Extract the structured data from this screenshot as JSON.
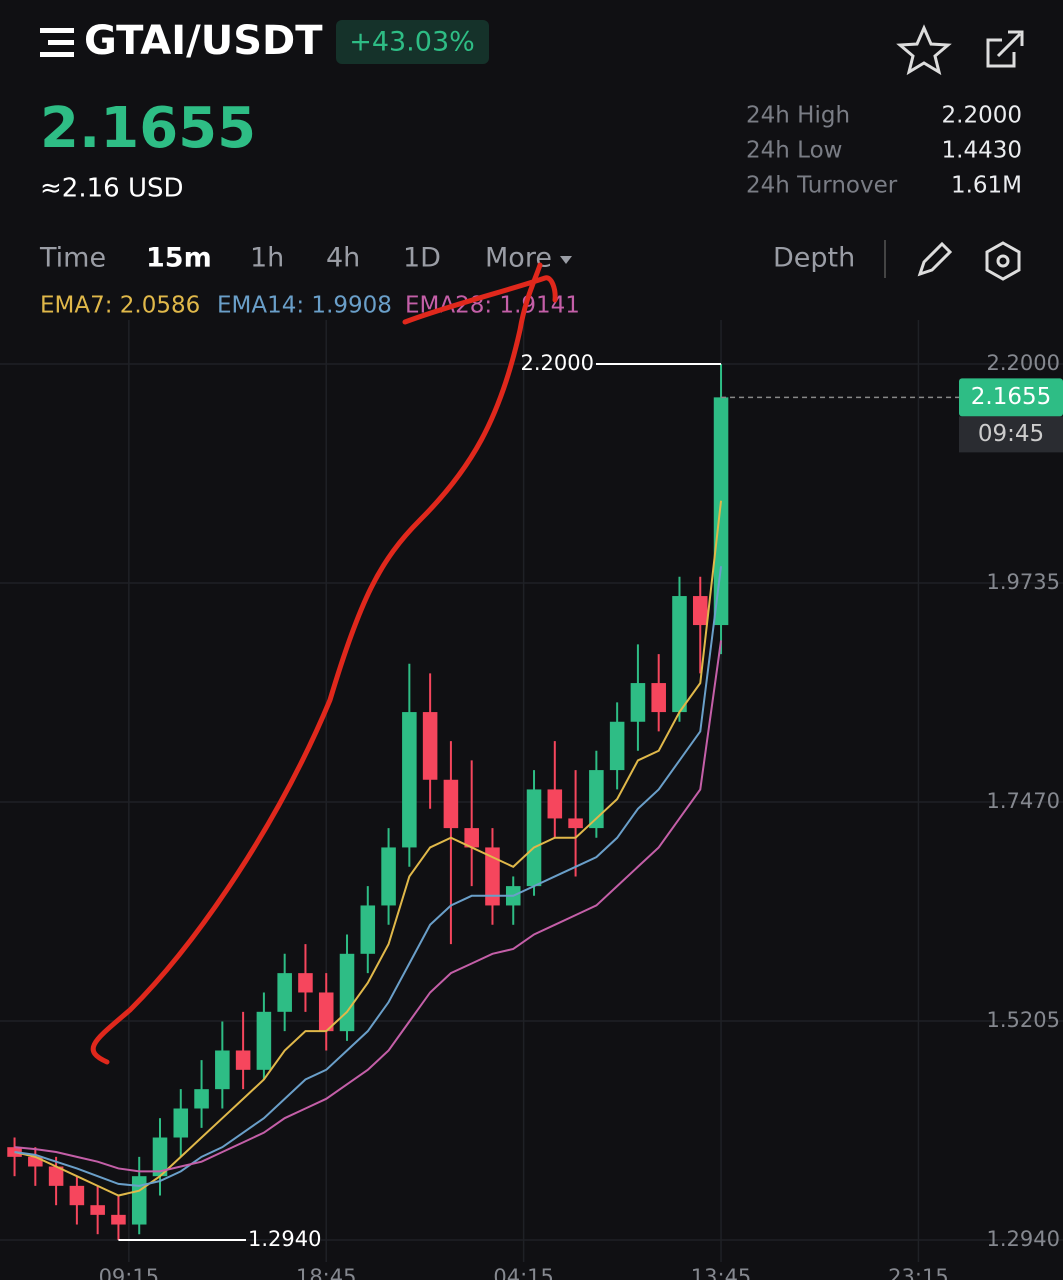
{
  "header": {
    "pair": "GTAI/USDT",
    "change": "+43.03%",
    "price": "2.1655",
    "usd_price": "≈2.16 USD",
    "stats": [
      {
        "label": "24h High",
        "value": "2.2000"
      },
      {
        "label": "24h Low",
        "value": "1.4430"
      },
      {
        "label": "24h Turnover",
        "value": "1.61M"
      }
    ]
  },
  "tabs": [
    "Time",
    "15m",
    "1h",
    "4h",
    "1D",
    "More",
    "Depth"
  ],
  "indicators": [
    "EMA7: 2.0586",
    "EMA14: 1.9908",
    "EMA28: 1.9141"
  ],
  "chart_data": {
    "type": "candlestick",
    "up_color": "#2ebd85",
    "down_color": "#f6465d",
    "grid": true,
    "x": [
      -5.5,
      -4.5,
      -3.5,
      -2.5,
      -1.5,
      -0.5,
      0.5,
      1.5,
      2.5,
      3.5,
      4.5,
      5.5,
      6.5,
      7.5,
      8.5,
      9.5,
      10.5,
      11.5,
      12.5,
      13.5,
      14.5,
      15.5,
      16.5,
      17.5,
      18.5,
      19.5,
      20.5,
      21.5,
      22.5,
      23.5,
      24.5,
      25.5,
      26.5,
      27.5,
      28.5
    ],
    "open": [
      1.39,
      1.38,
      1.37,
      1.35,
      1.33,
      1.32,
      1.31,
      1.36,
      1.4,
      1.43,
      1.45,
      1.49,
      1.47,
      1.53,
      1.57,
      1.55,
      1.51,
      1.59,
      1.64,
      1.7,
      1.84,
      1.77,
      1.72,
      1.7,
      1.64,
      1.66,
      1.76,
      1.73,
      1.72,
      1.78,
      1.83,
      1.87,
      1.84,
      1.96,
      1.93
    ],
    "high": [
      1.4,
      1.39,
      1.38,
      1.36,
      1.35,
      1.34,
      1.38,
      1.42,
      1.45,
      1.48,
      1.52,
      1.53,
      1.55,
      1.59,
      1.6,
      1.57,
      1.61,
      1.66,
      1.72,
      1.89,
      1.88,
      1.81,
      1.79,
      1.72,
      1.67,
      1.78,
      1.81,
      1.78,
      1.8,
      1.85,
      1.91,
      1.9,
      1.98,
      1.98,
      2.2
    ],
    "low": [
      1.36,
      1.35,
      1.33,
      1.31,
      1.3,
      1.294,
      1.3,
      1.34,
      1.38,
      1.41,
      1.43,
      1.45,
      1.46,
      1.51,
      1.53,
      1.49,
      1.5,
      1.57,
      1.62,
      1.68,
      1.74,
      1.6,
      1.66,
      1.62,
      1.62,
      1.65,
      1.71,
      1.67,
      1.71,
      1.76,
      1.8,
      1.82,
      1.83,
      1.88,
      1.9
    ],
    "close": [
      1.38,
      1.37,
      1.35,
      1.33,
      1.32,
      1.31,
      1.36,
      1.4,
      1.43,
      1.45,
      1.49,
      1.47,
      1.53,
      1.57,
      1.55,
      1.51,
      1.59,
      1.64,
      1.7,
      1.84,
      1.77,
      1.72,
      1.7,
      1.64,
      1.66,
      1.76,
      1.73,
      1.72,
      1.78,
      1.83,
      1.87,
      1.84,
      1.96,
      1.93,
      2.1655
    ],
    "series": [
      {
        "name": "EMA7",
        "color": "#e0b84a",
        "values": [
          1.385,
          1.38,
          1.37,
          1.36,
          1.35,
          1.34,
          1.345,
          1.36,
          1.38,
          1.4,
          1.42,
          1.44,
          1.46,
          1.49,
          1.51,
          1.51,
          1.53,
          1.56,
          1.6,
          1.67,
          1.7,
          1.71,
          1.7,
          1.69,
          1.68,
          1.7,
          1.71,
          1.71,
          1.73,
          1.75,
          1.79,
          1.8,
          1.84,
          1.87,
          2.0586
        ]
      },
      {
        "name": "EMA14",
        "color": "#6a9fc9",
        "values": [
          1.385,
          1.382,
          1.375,
          1.368,
          1.36,
          1.352,
          1.35,
          1.355,
          1.365,
          1.38,
          1.39,
          1.405,
          1.42,
          1.44,
          1.46,
          1.47,
          1.49,
          1.51,
          1.54,
          1.58,
          1.62,
          1.64,
          1.65,
          1.65,
          1.65,
          1.66,
          1.67,
          1.68,
          1.69,
          1.71,
          1.74,
          1.76,
          1.79,
          1.82,
          1.9908
        ]
      },
      {
        "name": "EMA28",
        "color": "#c45fa8",
        "values": [
          1.39,
          1.388,
          1.385,
          1.38,
          1.375,
          1.368,
          1.365,
          1.365,
          1.37,
          1.375,
          1.385,
          1.395,
          1.405,
          1.42,
          1.43,
          1.44,
          1.455,
          1.47,
          1.49,
          1.52,
          1.55,
          1.57,
          1.58,
          1.59,
          1.595,
          1.61,
          1.62,
          1.63,
          1.64,
          1.66,
          1.68,
          1.7,
          1.73,
          1.76,
          1.9141
        ]
      }
    ],
    "xlim": [
      -6.2,
      40
    ],
    "ylim": [
      1.294,
      2.2
    ],
    "xticks": [
      {
        "value": 0,
        "label": "09:15"
      },
      {
        "value": 9.5,
        "label": "18:45"
      },
      {
        "value": 19,
        "label": "04:15"
      },
      {
        "value": 28.5,
        "label": "13:45"
      },
      {
        "value": 38,
        "label": "23:15"
      }
    ],
    "yticks": [
      {
        "value": 2.2,
        "label": "2.2000"
      },
      {
        "value": 1.9735,
        "label": "1.9735"
      },
      {
        "value": 1.747,
        "label": "1.7470"
      },
      {
        "value": 1.5205,
        "label": "1.5205"
      },
      {
        "value": 1.294,
        "label": "1.2940"
      }
    ],
    "high_marker": {
      "value": 2.2,
      "label": "2.2000"
    },
    "low_marker": {
      "value": 1.294,
      "label": "1.2940"
    },
    "last_price": {
      "value": 2.1655,
      "label": "2.1655"
    },
    "countdown": "09:45"
  }
}
